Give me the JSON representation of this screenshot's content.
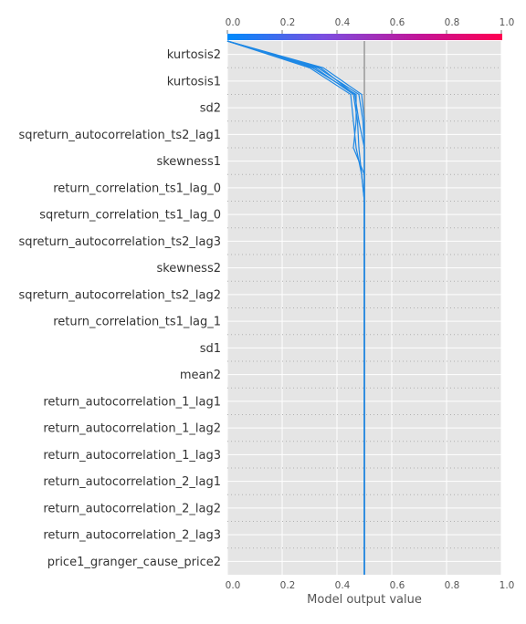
{
  "chart_data": {
    "type": "line",
    "subtype": "shap-decision-plot",
    "xlabel": "Model output value",
    "xlim": [
      0,
      1
    ],
    "x_ticks": [
      "0.0",
      "0.2",
      "0.4",
      "0.6",
      "0.8",
      "1.0"
    ],
    "x_tick_values": [
      0,
      0.2,
      0.4,
      0.6,
      0.8,
      1.0
    ],
    "base_value": 0.5,
    "grid": true,
    "features": [
      "price1_granger_cause_price2",
      "return_autocorrelation_2_lag3",
      "return_autocorrelation_2_lag2",
      "return_autocorrelation_2_lag1",
      "return_autocorrelation_1_lag3",
      "return_autocorrelation_1_lag2",
      "return_autocorrelation_1_lag1",
      "mean2",
      "sd1",
      "return_correlation_ts1_lag_1",
      "sqreturn_autocorrelation_ts2_lag2",
      "skewness2",
      "sqreturn_autocorrelation_ts2_lag3",
      "sqreturn_correlation_ts1_lag_0",
      "return_correlation_ts1_lag_0",
      "skewness1",
      "sqreturn_autocorrelation_ts2_lag1",
      "sd2",
      "kurtosis1",
      "kurtosis2"
    ],
    "series": [
      {
        "values": [
          0.5,
          0.5,
          0.5,
          0.5,
          0.5,
          0.5,
          0.5,
          0.5,
          0.5,
          0.5,
          0.5,
          0.5,
          0.5,
          0.5,
          0.5,
          0.5,
          0.5,
          0.5,
          0.49,
          0.35,
          0.0
        ]
      },
      {
        "values": [
          0.5,
          0.5,
          0.5,
          0.5,
          0.5,
          0.5,
          0.5,
          0.5,
          0.5,
          0.5,
          0.5,
          0.5,
          0.5,
          0.5,
          0.5,
          0.5,
          0.5,
          0.495,
          0.48,
          0.33,
          0.0
        ]
      },
      {
        "values": [
          0.5,
          0.5,
          0.5,
          0.5,
          0.5,
          0.5,
          0.5,
          0.5,
          0.5,
          0.5,
          0.5,
          0.5,
          0.5,
          0.5,
          0.5,
          0.5,
          0.46,
          0.47,
          0.47,
          0.31,
          0.0
        ]
      },
      {
        "values": [
          0.5,
          0.5,
          0.5,
          0.5,
          0.5,
          0.5,
          0.5,
          0.5,
          0.5,
          0.5,
          0.5,
          0.5,
          0.5,
          0.5,
          0.5,
          0.49,
          0.48,
          0.475,
          0.46,
          0.32,
          0.0
        ]
      },
      {
        "values": [
          0.5,
          0.5,
          0.5,
          0.5,
          0.5,
          0.5,
          0.5,
          0.5,
          0.5,
          0.5,
          0.5,
          0.5,
          0.5,
          0.5,
          0.5,
          0.49,
          0.47,
          0.46,
          0.45,
          0.3,
          0.0
        ]
      },
      {
        "values": [
          0.5,
          0.5,
          0.5,
          0.5,
          0.5,
          0.5,
          0.5,
          0.5,
          0.5,
          0.5,
          0.5,
          0.5,
          0.5,
          0.5,
          0.5,
          0.5,
          0.5,
          0.48,
          0.465,
          0.34,
          0.0
        ]
      }
    ],
    "line_color": "#1e88e5",
    "colorbar_colors": [
      "#008bfb",
      "#7b4fe0",
      "#c21597",
      "#ff0052"
    ],
    "background_color": "#e5e5e5",
    "base_line_color": "#999999"
  }
}
